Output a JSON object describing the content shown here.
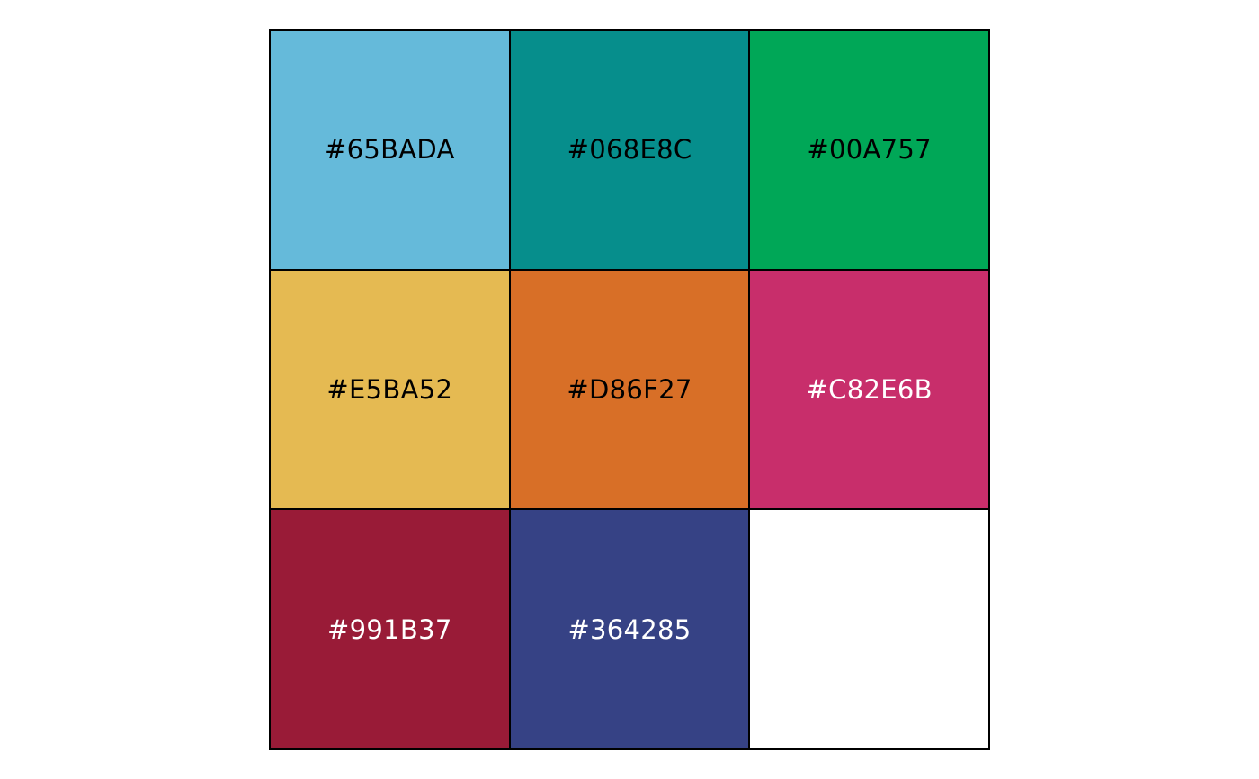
{
  "chart_data": {
    "type": "table",
    "swatches": [
      {
        "hex": "#65BADA",
        "label": "#65BADA",
        "text_color": "#000000"
      },
      {
        "hex": "#068E8C",
        "label": "#068E8C",
        "text_color": "#000000"
      },
      {
        "hex": "#00A757",
        "label": "#00A757",
        "text_color": "#000000"
      },
      {
        "hex": "#E5BA52",
        "label": "#E5BA52",
        "text_color": "#000000"
      },
      {
        "hex": "#D86F27",
        "label": "#D86F27",
        "text_color": "#000000"
      },
      {
        "hex": "#C82E6B",
        "label": "#C82E6B",
        "text_color": "#ffffff"
      },
      {
        "hex": "#991B37",
        "label": "#991B37",
        "text_color": "#ffffff"
      },
      {
        "hex": "#364285",
        "label": "#364285",
        "text_color": "#ffffff"
      },
      {
        "hex": "#FFFFFF",
        "label": "",
        "text_color": "#000000"
      }
    ]
  }
}
